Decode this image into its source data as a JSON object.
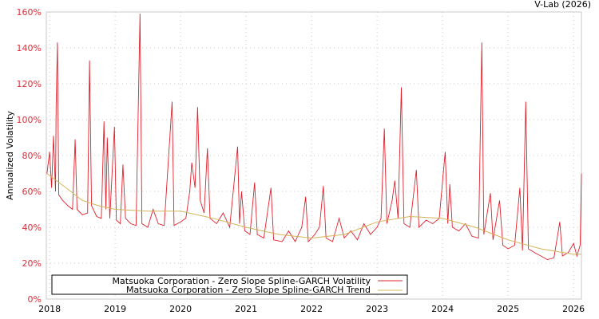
{
  "chart_data": {
    "type": "line",
    "title": "V-Lab (2026)",
    "xlabel": "",
    "ylabel": "Annualized Volatility",
    "xlim": [
      2017.95,
      2026.12
    ],
    "ylim": [
      0,
      160
    ],
    "grid": true,
    "legend_position": "bottom-left",
    "x_ticks": [
      "2018",
      "2019",
      "2020",
      "2021",
      "2022",
      "2023",
      "2024",
      "2025",
      "2026"
    ],
    "y_ticks": [
      "0%",
      "20%",
      "40%",
      "60%",
      "80%",
      "100%",
      "120%",
      "140%",
      "160%"
    ],
    "series": [
      {
        "name": "Matsuoka Corporation - Zero Slope Spline-GARCH Volatility",
        "color": "#e0202c",
        "x": [
          2017.96,
          2018.0,
          2018.03,
          2018.06,
          2018.09,
          2018.1,
          2018.12,
          2018.14,
          2018.2,
          2018.28,
          2018.35,
          2018.39,
          2018.42,
          2018.5,
          2018.58,
          2018.61,
          2018.64,
          2018.72,
          2018.79,
          2018.83,
          2018.86,
          2018.88,
          2018.92,
          2018.99,
          2019.02,
          2019.08,
          2019.12,
          2019.16,
          2019.24,
          2019.32,
          2019.38,
          2019.41,
          2019.5,
          2019.58,
          2019.66,
          2019.75,
          2019.87,
          2019.9,
          2020.0,
          2020.08,
          2020.14,
          2020.17,
          2020.22,
          2020.26,
          2020.3,
          2020.36,
          2020.41,
          2020.45,
          2020.55,
          2020.65,
          2020.75,
          2020.87,
          2020.9,
          2020.93,
          2020.98,
          2021.06,
          2021.13,
          2021.17,
          2021.27,
          2021.38,
          2021.42,
          2021.55,
          2021.65,
          2021.75,
          2021.85,
          2021.91,
          2021.95,
          2022.05,
          2022.12,
          2022.18,
          2022.22,
          2022.32,
          2022.42,
          2022.5,
          2022.6,
          2022.7,
          2022.8,
          2022.9,
          2023.0,
          2023.06,
          2023.11,
          2023.15,
          2023.23,
          2023.27,
          2023.32,
          2023.37,
          2023.41,
          2023.5,
          2023.6,
          2023.64,
          2023.75,
          2023.85,
          2023.95,
          2024.04,
          2024.08,
          2024.11,
          2024.15,
          2024.25,
          2024.35,
          2024.45,
          2024.55,
          2024.6,
          2024.63,
          2024.73,
          2024.77,
          2024.87,
          2024.92,
          2025.0,
          2025.1,
          2025.18,
          2025.22,
          2025.27,
          2025.31,
          2025.4,
          2025.5,
          2025.6,
          2025.7,
          2025.79,
          2025.83,
          2025.92,
          2026.0,
          2026.05,
          2026.1,
          2026.12
        ],
        "y": [
          70,
          82,
          62,
          91,
          60,
          108,
          143,
          58,
          55,
          52,
          50,
          89,
          50,
          47,
          48,
          133,
          52,
          46,
          45,
          99,
          50,
          90,
          45,
          96,
          44,
          42,
          75,
          45,
          42,
          41,
          159,
          42,
          40,
          50,
          42,
          41,
          110,
          41,
          43,
          45,
          60,
          76,
          62,
          107,
          55,
          48,
          84,
          45,
          42,
          48,
          40,
          85,
          42,
          60,
          38,
          36,
          65,
          36,
          34,
          62,
          33,
          32,
          38,
          32,
          40,
          57,
          32,
          36,
          40,
          63,
          34,
          32,
          45,
          34,
          38,
          33,
          42,
          36,
          40,
          45,
          95,
          42,
          55,
          66,
          45,
          118,
          42,
          40,
          72,
          40,
          44,
          42,
          45,
          82,
          42,
          64,
          40,
          38,
          42,
          35,
          34,
          143,
          36,
          59,
          33,
          55,
          30,
          28,
          30,
          62,
          27,
          110,
          28,
          26,
          24,
          22,
          23,
          43,
          24,
          26,
          31,
          24,
          30,
          70
        ]
      },
      {
        "name": "Matsuoka Corporation - Zero Slope Spline-GARCH Trend",
        "color": "#d4b45a",
        "x": [
          2017.96,
          2018.25,
          2018.5,
          2018.75,
          2019.0,
          2019.5,
          2020.0,
          2020.5,
          2021.0,
          2021.5,
          2022.0,
          2022.5,
          2023.0,
          2023.5,
          2024.0,
          2024.5,
          2025.0,
          2025.5,
          2026.0,
          2026.12
        ],
        "y": [
          70,
          62,
          55,
          52,
          50,
          49,
          49,
          45,
          40,
          36,
          34,
          36,
          43,
          46,
          45,
          40,
          33,
          28,
          25,
          25
        ]
      }
    ]
  }
}
